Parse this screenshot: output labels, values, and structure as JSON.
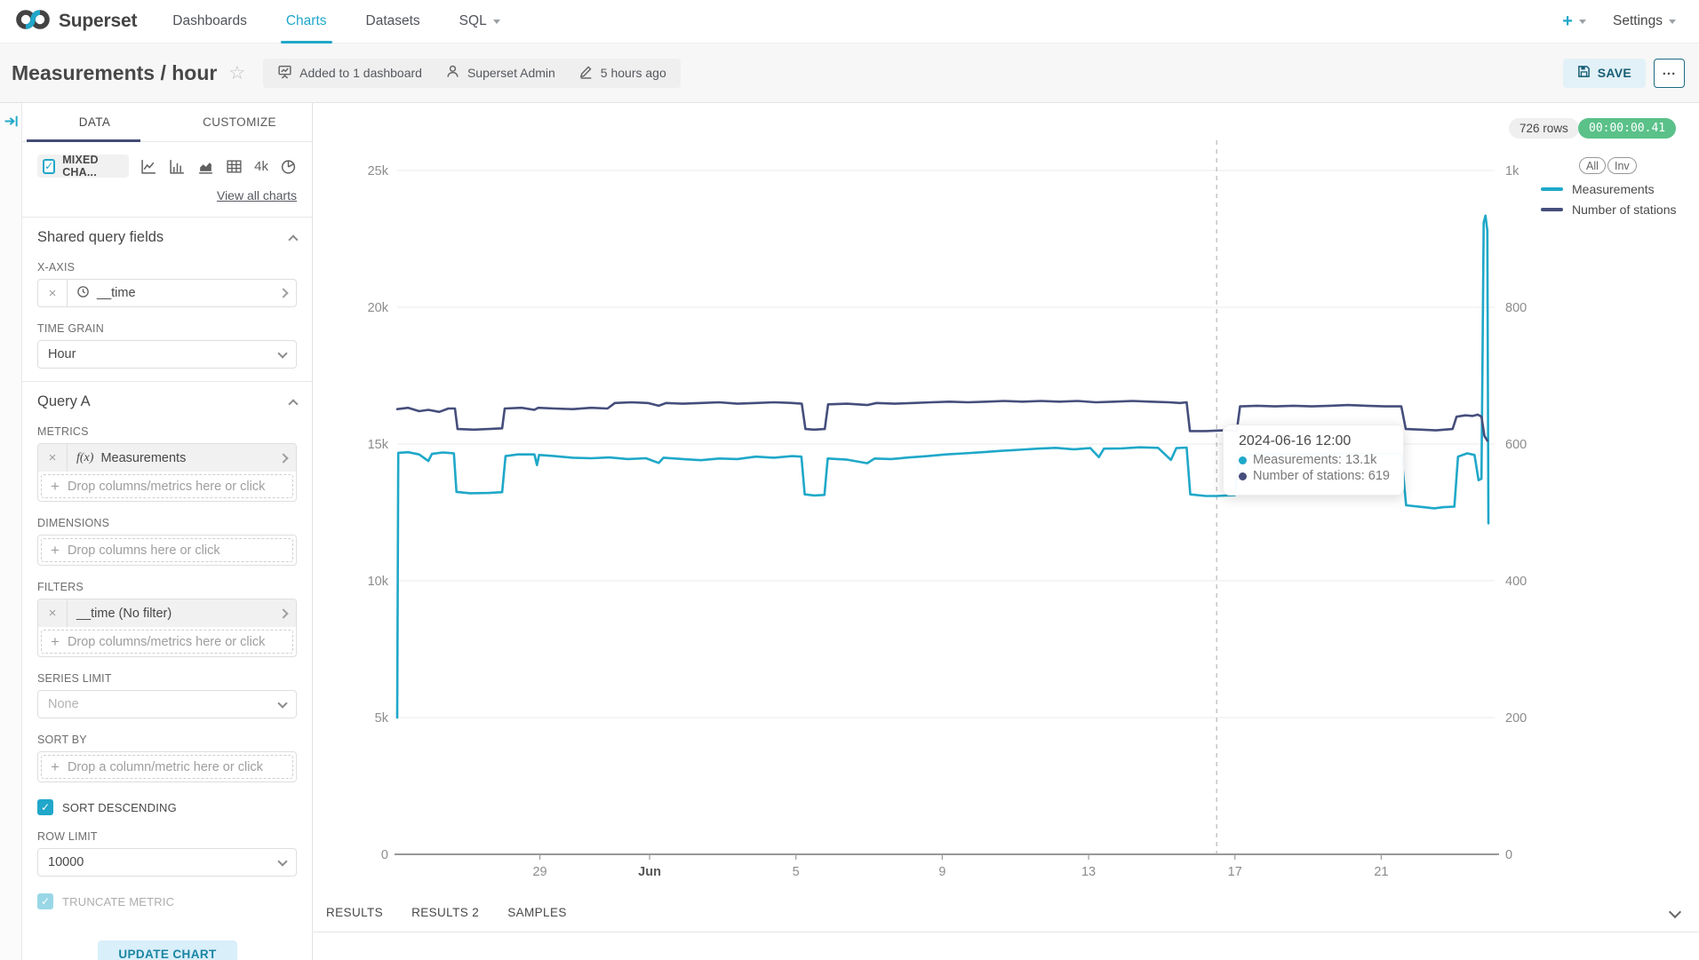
{
  "colors": {
    "accent": "#20A7C9",
    "series1": "#1FA8C9",
    "series2": "#454E7C",
    "success_green": "#5AC189",
    "ink_bar": "#434c75"
  },
  "nav": {
    "brand": "Superset",
    "items": [
      {
        "label": "Dashboards",
        "active": false
      },
      {
        "label": "Charts",
        "active": true
      },
      {
        "label": "Datasets",
        "active": false
      },
      {
        "label": "SQL",
        "active": false
      }
    ],
    "plus": "+",
    "settings": "Settings"
  },
  "header": {
    "title": "Measurements / hour",
    "meta": {
      "dashboards": "Added to 1 dashboard",
      "owner": "Superset Admin",
      "modified": "5 hours ago"
    },
    "save_label": "SAVE",
    "more_label": "..."
  },
  "panel": {
    "tabs": {
      "data": "DATA",
      "customize": "CUSTOMIZE"
    },
    "viz": {
      "selected": "MIXED CHA...",
      "big_number": "4k",
      "view_all": "View all charts"
    },
    "shared": {
      "title": "Shared query fields",
      "xaxis_label": "X-AXIS",
      "xaxis_value": "__time",
      "time_grain_label": "TIME GRAIN",
      "time_grain_value": "Hour"
    },
    "query": {
      "title": "Query A",
      "metrics_label": "METRICS",
      "metric_fn": "f(x)",
      "metric_value": "Measurements",
      "metrics_drop": "Drop columns/metrics here or click",
      "dimensions_label": "DIMENSIONS",
      "dimensions_drop": "Drop columns here or click",
      "filters_label": "FILTERS",
      "filter_value": "__time (No filter)",
      "filters_drop": "Drop columns/metrics here or click",
      "series_limit_label": "SERIES LIMIT",
      "series_limit_placeholder": "None",
      "sort_by_label": "SORT BY",
      "sort_by_drop": "Drop a column/metric here or click",
      "sort_descending_label": "SORT DESCENDING",
      "row_limit_label": "ROW LIMIT",
      "row_limit_value": "10000",
      "truncate_label": "TRUNCATE METRIC"
    },
    "update_button": "UPDATE CHART",
    "close_glyph": "×",
    "check_glyph": "✓",
    "plus_glyph": "+"
  },
  "chartArea": {
    "rows_badge": "726 rows",
    "timer_badge": "00:00:00.41",
    "legend": {
      "all": "All",
      "inv": "Inv",
      "series": [
        {
          "label": "Measurements",
          "color": "#1FA8C9"
        },
        {
          "label": "Number of stations",
          "color": "#454E7C"
        }
      ]
    },
    "tooltip": {
      "title": "2024-06-16 12:00",
      "rows": [
        {
          "color": "#1FA8C9",
          "label": "Measurements: 13.1k"
        },
        {
          "color": "#454E7C",
          "label": "Number of stations: 619"
        }
      ]
    }
  },
  "results": {
    "tabs": [
      "RESULTS",
      "RESULTS 2",
      "SAMPLES"
    ]
  },
  "chart_data": {
    "type": "line",
    "x_axis": {
      "unit": "days since 2024-05-25 00:00",
      "range": [
        0.1,
        30.1
      ],
      "ticks": [
        {
          "d": 4,
          "label": "29",
          "bold": false
        },
        {
          "d": 7,
          "label": "Jun",
          "bold": true
        },
        {
          "d": 11,
          "label": "5",
          "bold": false
        },
        {
          "d": 15,
          "label": "9",
          "bold": false
        },
        {
          "d": 19,
          "label": "13",
          "bold": false
        },
        {
          "d": 23,
          "label": "17",
          "bold": false
        },
        {
          "d": 27,
          "label": "21",
          "bold": false
        }
      ]
    },
    "y_left": {
      "range": [
        0,
        25000
      ],
      "ticks": [
        {
          "v": 0,
          "label": "0"
        },
        {
          "v": 5000,
          "label": "5k"
        },
        {
          "v": 10000,
          "label": "10k"
        },
        {
          "v": 15000,
          "label": "15k"
        },
        {
          "v": 20000,
          "label": "20k"
        },
        {
          "v": 25000,
          "label": "25k"
        }
      ]
    },
    "y_right": {
      "range": [
        0,
        1000
      ],
      "ticks": [
        {
          "v": 0,
          "label": "0"
        },
        {
          "v": 200,
          "label": "200"
        },
        {
          "v": 400,
          "label": "400"
        },
        {
          "v": 600,
          "label": "600"
        },
        {
          "v": 800,
          "label": "800"
        },
        {
          "v": 1000,
          "label": "1k"
        }
      ]
    },
    "crosshair_day": 22.5,
    "series": [
      {
        "name": "Measurements",
        "axis": "left",
        "color": "#1FA8C9",
        "points": [
          [
            0.1,
            5000
          ],
          [
            0.13,
            14680
          ],
          [
            0.4,
            14700
          ],
          [
            0.7,
            14620
          ],
          [
            0.95,
            14380
          ],
          [
            1.05,
            14640
          ],
          [
            1.35,
            14690
          ],
          [
            1.65,
            14660
          ],
          [
            1.72,
            13250
          ],
          [
            2.1,
            13200
          ],
          [
            2.6,
            13210
          ],
          [
            2.97,
            13240
          ],
          [
            3.06,
            14560
          ],
          [
            3.4,
            14620
          ],
          [
            3.85,
            14620
          ],
          [
            3.92,
            14230
          ],
          [
            3.98,
            14600
          ],
          [
            4.4,
            14560
          ],
          [
            4.9,
            14500
          ],
          [
            5.4,
            14480
          ],
          [
            5.9,
            14510
          ],
          [
            6.4,
            14450
          ],
          [
            6.9,
            14480
          ],
          [
            7.25,
            14310
          ],
          [
            7.38,
            14500
          ],
          [
            7.9,
            14450
          ],
          [
            8.4,
            14410
          ],
          [
            8.9,
            14470
          ],
          [
            9.4,
            14450
          ],
          [
            9.9,
            14540
          ],
          [
            10.4,
            14500
          ],
          [
            10.9,
            14560
          ],
          [
            11.15,
            14540
          ],
          [
            11.24,
            13160
          ],
          [
            11.5,
            13120
          ],
          [
            11.78,
            13140
          ],
          [
            11.87,
            14470
          ],
          [
            12.4,
            14430
          ],
          [
            12.95,
            14300
          ],
          [
            13.15,
            14470
          ],
          [
            13.6,
            14450
          ],
          [
            14.1,
            14510
          ],
          [
            14.6,
            14560
          ],
          [
            15.1,
            14620
          ],
          [
            15.6,
            14660
          ],
          [
            16.1,
            14700
          ],
          [
            16.6,
            14750
          ],
          [
            17.1,
            14790
          ],
          [
            17.6,
            14830
          ],
          [
            18.1,
            14860
          ],
          [
            18.6,
            14810
          ],
          [
            19.05,
            14850
          ],
          [
            19.28,
            14520
          ],
          [
            19.42,
            14830
          ],
          [
            19.9,
            14840
          ],
          [
            20.4,
            14880
          ],
          [
            20.9,
            14860
          ],
          [
            21.25,
            14420
          ],
          [
            21.4,
            14850
          ],
          [
            21.68,
            14870
          ],
          [
            21.78,
            13160
          ],
          [
            22.2,
            13100
          ],
          [
            22.5,
            13100
          ],
          [
            23.0,
            13130
          ],
          [
            23.12,
            14590
          ],
          [
            23.6,
            14630
          ],
          [
            24.1,
            14650
          ],
          [
            24.6,
            14620
          ],
          [
            25.1,
            14640
          ],
          [
            25.6,
            14650
          ],
          [
            26.1,
            14660
          ],
          [
            26.6,
            14640
          ],
          [
            27.1,
            14650
          ],
          [
            27.55,
            14660
          ],
          [
            27.68,
            12760
          ],
          [
            28.1,
            12700
          ],
          [
            28.45,
            12650
          ],
          [
            28.7,
            12690
          ],
          [
            29.0,
            12710
          ],
          [
            29.1,
            14540
          ],
          [
            29.35,
            14660
          ],
          [
            29.55,
            14600
          ],
          [
            29.66,
            13680
          ],
          [
            29.74,
            13730
          ],
          [
            29.8,
            23100
          ],
          [
            29.85,
            23350
          ],
          [
            29.9,
            22800
          ],
          [
            29.93,
            12100
          ]
        ]
      },
      {
        "name": "Number of stations",
        "axis": "right",
        "color": "#454E7C",
        "points": [
          [
            0.1,
            651
          ],
          [
            0.4,
            653
          ],
          [
            0.7,
            648
          ],
          [
            0.95,
            650
          ],
          [
            1.25,
            647
          ],
          [
            1.5,
            652
          ],
          [
            1.68,
            652
          ],
          [
            1.75,
            622
          ],
          [
            2.2,
            621
          ],
          [
            2.6,
            622
          ],
          [
            2.97,
            623
          ],
          [
            3.04,
            652
          ],
          [
            3.5,
            653
          ],
          [
            3.85,
            650
          ],
          [
            3.95,
            653
          ],
          [
            4.4,
            652
          ],
          [
            4.9,
            651
          ],
          [
            5.4,
            653
          ],
          [
            5.85,
            652
          ],
          [
            6.05,
            660
          ],
          [
            6.5,
            661
          ],
          [
            6.95,
            660
          ],
          [
            7.25,
            656
          ],
          [
            7.45,
            660
          ],
          [
            7.9,
            659
          ],
          [
            8.4,
            660
          ],
          [
            8.9,
            661
          ],
          [
            9.4,
            659
          ],
          [
            9.9,
            660
          ],
          [
            10.4,
            661
          ],
          [
            10.9,
            660
          ],
          [
            11.16,
            659
          ],
          [
            11.26,
            622
          ],
          [
            11.5,
            621
          ],
          [
            11.79,
            622
          ],
          [
            11.88,
            658
          ],
          [
            12.4,
            659
          ],
          [
            12.95,
            657
          ],
          [
            13.2,
            660
          ],
          [
            13.7,
            659
          ],
          [
            14.2,
            660
          ],
          [
            14.7,
            661
          ],
          [
            15.2,
            662
          ],
          [
            15.7,
            661
          ],
          [
            16.2,
            662
          ],
          [
            16.7,
            663
          ],
          [
            17.2,
            662
          ],
          [
            17.7,
            663
          ],
          [
            18.2,
            662
          ],
          [
            18.7,
            663
          ],
          [
            19.2,
            661
          ],
          [
            19.7,
            662
          ],
          [
            20.2,
            663
          ],
          [
            20.7,
            662
          ],
          [
            21.2,
            661
          ],
          [
            21.5,
            660
          ],
          [
            21.68,
            661
          ],
          [
            21.77,
            619
          ],
          [
            22.2,
            619
          ],
          [
            22.7,
            620
          ],
          [
            23.05,
            619
          ],
          [
            23.14,
            655
          ],
          [
            23.6,
            656
          ],
          [
            24.1,
            655
          ],
          [
            24.6,
            656
          ],
          [
            25.1,
            655
          ],
          [
            25.6,
            656
          ],
          [
            26.1,
            657
          ],
          [
            26.6,
            656
          ],
          [
            27.1,
            655
          ],
          [
            27.55,
            655
          ],
          [
            27.67,
            622
          ],
          [
            28.1,
            621
          ],
          [
            28.5,
            620
          ],
          [
            28.95,
            622
          ],
          [
            29.06,
            640
          ],
          [
            29.3,
            642
          ],
          [
            29.5,
            641
          ],
          [
            29.64,
            643
          ],
          [
            29.74,
            640
          ],
          [
            29.82,
            612
          ],
          [
            29.9,
            605
          ]
        ]
      }
    ]
  }
}
